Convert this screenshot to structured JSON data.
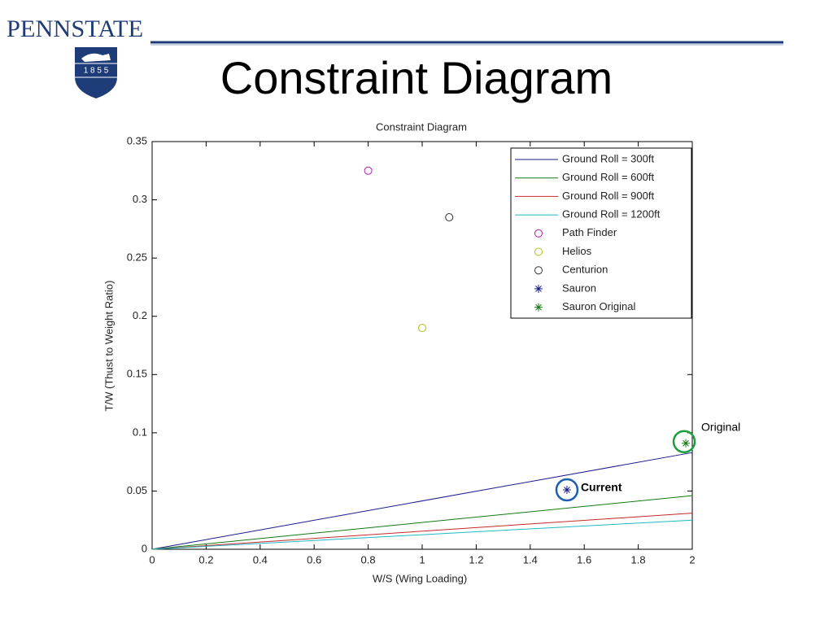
{
  "slide": {
    "logo_text": "PENNSTATE",
    "logo_year": "1 8 5 5",
    "title": "Constraint Diagram"
  },
  "chart_data": {
    "type": "line",
    "title": "Constraint Diagram",
    "xlabel": "W/S (Wing Loading)",
    "ylabel": "T/W (Thust to Weight Ratio)",
    "xlim": [
      0,
      2
    ],
    "xticks": [
      0,
      0.2,
      0.4,
      0.6,
      0.8,
      1,
      1.2,
      1.4,
      1.6,
      1.8,
      2
    ],
    "ylim": [
      0,
      0.35
    ],
    "yticks": [
      0,
      0.05,
      0.1,
      0.15,
      0.2,
      0.25,
      0.3,
      0.35
    ],
    "grid": false,
    "legend": "northeast",
    "series": [
      {
        "name": "Ground Roll = 300ft",
        "color": "#1a1a8c",
        "marker": "line",
        "x": [
          0,
          2
        ],
        "values": [
          0,
          0.083
        ]
      },
      {
        "name": "Ground Roll = 600ft",
        "color": "#127a12",
        "marker": "line",
        "x": [
          0,
          2
        ],
        "values": [
          0,
          0.046
        ]
      },
      {
        "name": "Ground Roll = 900ft",
        "color": "#c42a2a",
        "marker": "line",
        "x": [
          0,
          2
        ],
        "values": [
          0,
          0.031
        ]
      },
      {
        "name": "Ground Roll = 1200ft",
        "color": "#1fb8c4",
        "marker": "line",
        "x": [
          0,
          2
        ],
        "values": [
          0,
          0.025
        ]
      },
      {
        "name": "Path Finder",
        "color": "#b01cb0",
        "marker": "circle",
        "x": [
          0.8
        ],
        "values": [
          0.325
        ]
      },
      {
        "name": "Helios",
        "color": "#b8b81a",
        "marker": "circle",
        "x": [
          1.0
        ],
        "values": [
          0.19
        ]
      },
      {
        "name": "Centurion",
        "color": "#333333",
        "marker": "circle",
        "x": [
          1.1
        ],
        "values": [
          0.285
        ]
      },
      {
        "name": "Sauron",
        "color": "#1a1a8c",
        "marker": "star",
        "x": [
          1.536
        ],
        "values": [
          0.051
        ]
      },
      {
        "name": "Sauron Original",
        "color": "#127a12",
        "marker": "star",
        "x": [
          1.976
        ],
        "values": [
          0.091
        ]
      }
    ],
    "annotations": [
      {
        "text": "Original",
        "color": "#1aa03c"
      },
      {
        "text": "Current",
        "color": "#1f5fb0"
      }
    ]
  }
}
